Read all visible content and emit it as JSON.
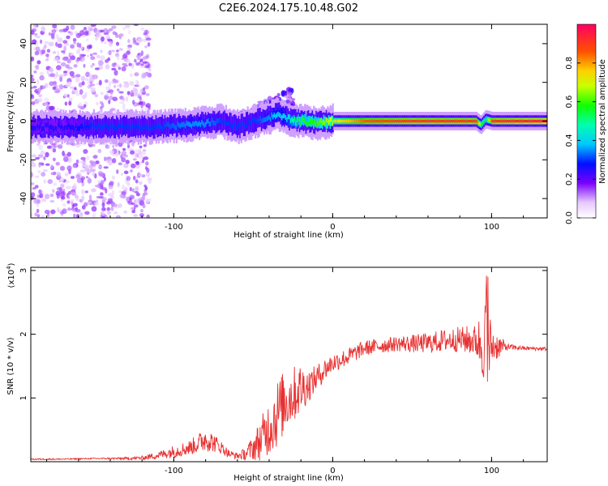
{
  "title": "C2E6.2024.175.10.48.G02",
  "chart_data": [
    {
      "type": "heatmap",
      "xlabel": "Height of straight line (km)",
      "ylabel": "Frequency (Hz)",
      "xlim": [
        -190,
        135
      ],
      "ylim": [
        -50,
        50
      ],
      "xticks": [
        -100,
        0,
        100
      ],
      "yticks": [
        -40,
        -20,
        0,
        20,
        40
      ],
      "colorbar": {
        "label": "Normalized spectral amplitude",
        "range": [
          0,
          1
        ],
        "ticks": [
          0.0,
          0.2,
          0.4,
          0.6,
          0.8
        ]
      },
      "ridge": {
        "x": [
          -190,
          -170,
          -150,
          -130,
          -110,
          -90,
          -80,
          -70,
          -60,
          -50,
          -40,
          -35,
          -30,
          -25,
          -20,
          -10,
          0,
          20,
          50,
          90,
          93,
          96,
          100,
          135
        ],
        "y": [
          -3,
          -3,
          -3,
          -3,
          -3,
          -2,
          -1,
          0,
          -3,
          0,
          2,
          4,
          2,
          0,
          0,
          -1,
          0,
          0,
          0,
          0,
          -2,
          1,
          0,
          0
        ],
        "amplitude": [
          0.25,
          0.25,
          0.3,
          0.3,
          0.3,
          0.35,
          0.35,
          0.3,
          0.3,
          0.3,
          0.35,
          0.4,
          0.4,
          0.5,
          0.55,
          0.6,
          0.7,
          0.85,
          0.9,
          0.9,
          0.6,
          0.5,
          0.9,
          0.95
        ]
      }
    },
    {
      "type": "line",
      "xlabel": "Height of straight line (km)",
      "ylabel": "SNR (10 * v/v)",
      "y_scale_note": "(x10",
      "y_scale_exp": "4",
      "xlim": [
        -190,
        135
      ],
      "ylim": [
        0,
        3.05
      ],
      "xticks": [
        -100,
        0,
        100
      ],
      "yticks": [
        1,
        2,
        3
      ],
      "series": [
        {
          "color": "#e83030",
          "x": [
            -190,
            -170,
            -150,
            -130,
            -120,
            -110,
            -100,
            -90,
            -85,
            -80,
            -75,
            -70,
            -65,
            -60,
            -55,
            -50,
            -45,
            -40,
            -35,
            -30,
            -25,
            -20,
            -15,
            -10,
            -5,
            0,
            10,
            20,
            30,
            40,
            50,
            60,
            70,
            80,
            90,
            95,
            97,
            100,
            110,
            120,
            135
          ],
          "y": [
            0.04,
            0.04,
            0.05,
            0.05,
            0.06,
            0.1,
            0.16,
            0.22,
            0.28,
            0.36,
            0.3,
            0.22,
            0.12,
            0.09,
            0.12,
            0.22,
            0.35,
            0.55,
            0.75,
            0.95,
            1.05,
            1.15,
            1.2,
            1.32,
            1.45,
            1.55,
            1.65,
            1.78,
            1.82,
            1.85,
            1.85,
            1.86,
            1.9,
            1.92,
            1.9,
            1.85,
            1.8,
            1.82,
            1.8,
            1.78,
            1.77
          ],
          "noise": [
            0.01,
            0.01,
            0.01,
            0.02,
            0.03,
            0.06,
            0.1,
            0.12,
            0.15,
            0.2,
            0.15,
            0.1,
            0.06,
            0.05,
            0.1,
            0.2,
            0.35,
            0.45,
            0.55,
            0.5,
            0.45,
            0.4,
            0.25,
            0.2,
            0.18,
            0.15,
            0.14,
            0.12,
            0.12,
            0.12,
            0.14,
            0.16,
            0.18,
            0.2,
            0.25,
            0.6,
            1.0,
            0.3,
            0.05,
            0.03,
            0.03
          ]
        }
      ]
    }
  ]
}
